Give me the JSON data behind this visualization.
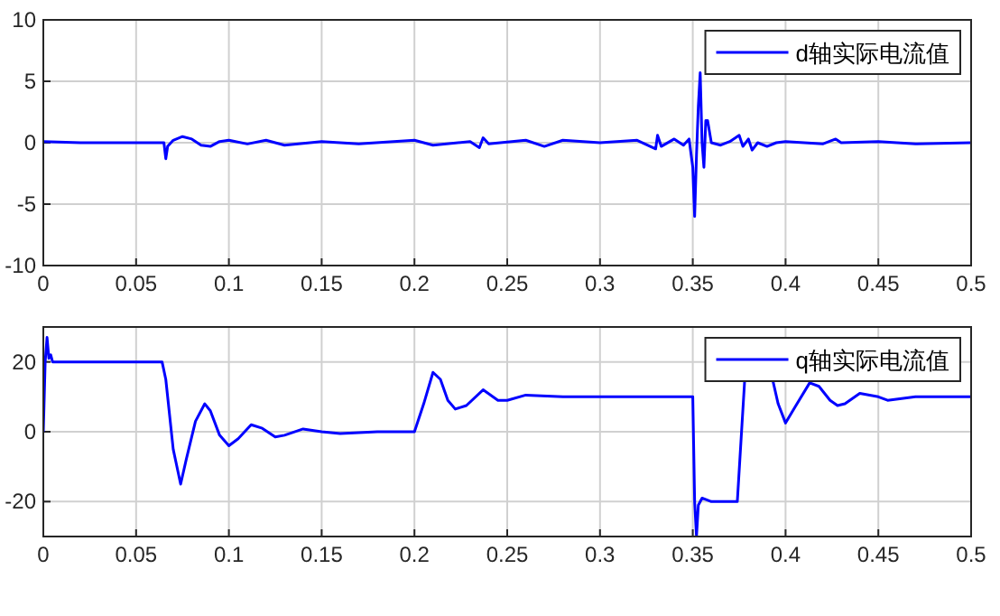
{
  "chart_data": [
    {
      "type": "line",
      "xlim": [
        0,
        0.5
      ],
      "ylim": [
        -10,
        10
      ],
      "xticks": [
        0,
        0.05,
        0.1,
        0.15,
        0.2,
        0.25,
        0.3,
        0.35,
        0.4,
        0.45,
        0.5
      ],
      "yticks": [
        -10,
        -5,
        0,
        5,
        10
      ],
      "grid": true,
      "legend": "top right",
      "series": [
        {
          "name": "d轴实际电流值",
          "color": "#0000ff",
          "x": [
            0,
            0.02,
            0.065,
            0.066,
            0.067,
            0.07,
            0.075,
            0.08,
            0.085,
            0.09,
            0.095,
            0.1,
            0.11,
            0.12,
            0.13,
            0.15,
            0.17,
            0.2,
            0.21,
            0.23,
            0.235,
            0.237,
            0.24,
            0.26,
            0.27,
            0.28,
            0.3,
            0.32,
            0.33,
            0.331,
            0.333,
            0.34,
            0.345,
            0.348,
            0.35,
            0.351,
            0.352,
            0.353,
            0.354,
            0.355,
            0.356,
            0.357,
            0.358,
            0.36,
            0.365,
            0.37,
            0.375,
            0.377,
            0.38,
            0.382,
            0.385,
            0.39,
            0.395,
            0.4,
            0.42,
            0.427,
            0.43,
            0.45,
            0.47,
            0.5
          ],
          "values": [
            0.1,
            0,
            0,
            -1.3,
            -0.3,
            0.2,
            0.5,
            0.3,
            -0.2,
            -0.3,
            0.1,
            0.2,
            -0.1,
            0.2,
            -0.2,
            0.1,
            -0.1,
            0.2,
            -0.2,
            0.1,
            -0.4,
            0.4,
            -0.1,
            0.2,
            -0.3,
            0.2,
            0,
            0.2,
            -0.5,
            0.6,
            -0.3,
            0.3,
            -0.2,
            0.3,
            -2,
            -6,
            -1,
            3,
            5.7,
            0,
            -2,
            1.8,
            1.8,
            0,
            -0.2,
            0.1,
            0.6,
            -0.3,
            0.3,
            -0.6,
            0,
            -0.3,
            0,
            0.1,
            -0.1,
            0.3,
            0,
            0.1,
            -0.1,
            0
          ]
        }
      ]
    },
    {
      "type": "line",
      "xlim": [
        0,
        0.5
      ],
      "ylim": [
        -30,
        30
      ],
      "xticks": [
        0,
        0.05,
        0.1,
        0.15,
        0.2,
        0.25,
        0.3,
        0.35,
        0.4,
        0.45,
        0.5
      ],
      "yticks": [
        -20,
        0,
        20
      ],
      "grid": true,
      "legend": "top right",
      "series": [
        {
          "name": "q轴实际电流值",
          "color": "#0000ff",
          "x": [
            0,
            0.001,
            0.002,
            0.003,
            0.004,
            0.005,
            0.02,
            0.064,
            0.066,
            0.07,
            0.074,
            0.077,
            0.082,
            0.087,
            0.09,
            0.095,
            0.1,
            0.105,
            0.112,
            0.118,
            0.125,
            0.13,
            0.14,
            0.15,
            0.16,
            0.18,
            0.2,
            0.205,
            0.21,
            0.214,
            0.218,
            0.222,
            0.228,
            0.237,
            0.245,
            0.25,
            0.26,
            0.28,
            0.3,
            0.35,
            0.351,
            0.352,
            0.353,
            0.355,
            0.36,
            0.374,
            0.378,
            0.393,
            0.396,
            0.4,
            0.405,
            0.413,
            0.418,
            0.424,
            0.428,
            0.432,
            0.44,
            0.45,
            0.455,
            0.47,
            0.5
          ],
          "values": [
            0,
            20,
            27,
            21,
            22,
            20,
            20,
            20,
            15,
            -5,
            -15,
            -8,
            3,
            8,
            6,
            -1,
            -4,
            -2,
            2,
            1,
            -1.5,
            -1,
            0.8,
            0,
            -0.5,
            0,
            0,
            8,
            17,
            15,
            9,
            6.5,
            7.5,
            12,
            9,
            9,
            10.5,
            10,
            10,
            10,
            -20,
            -30,
            -21,
            -19,
            -20,
            -20,
            15,
            15,
            8,
            2.5,
            7,
            14,
            13,
            9,
            7.5,
            8,
            11,
            10,
            9,
            10,
            10
          ]
        }
      ]
    }
  ]
}
